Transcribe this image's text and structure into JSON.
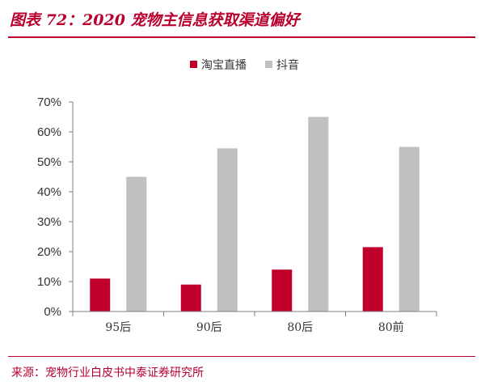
{
  "header": {
    "title": "图表 72：2020 宠物主信息获取渠道偏好"
  },
  "footer": {
    "source": "来源：宠物行业白皮书中泰证券研究所"
  },
  "colors": {
    "accent": "#b8002e",
    "series1": "#c0002b",
    "series2": "#c0c0c0",
    "axis": "#808080"
  },
  "chart_data": {
    "type": "bar",
    "categories": [
      "95后",
      "90后",
      "80后",
      "80前"
    ],
    "series": [
      {
        "name": "淘宝直播",
        "values": [
          11,
          9,
          14,
          21.5
        ]
      },
      {
        "name": "抖音",
        "values": [
          45,
          54.5,
          65,
          55
        ]
      }
    ],
    "ylim": [
      0,
      70
    ],
    "yticks": [
      "0%",
      "10%",
      "20%",
      "30%",
      "40%",
      "50%",
      "60%",
      "70%"
    ],
    "grid": false,
    "legend": "top-center"
  }
}
